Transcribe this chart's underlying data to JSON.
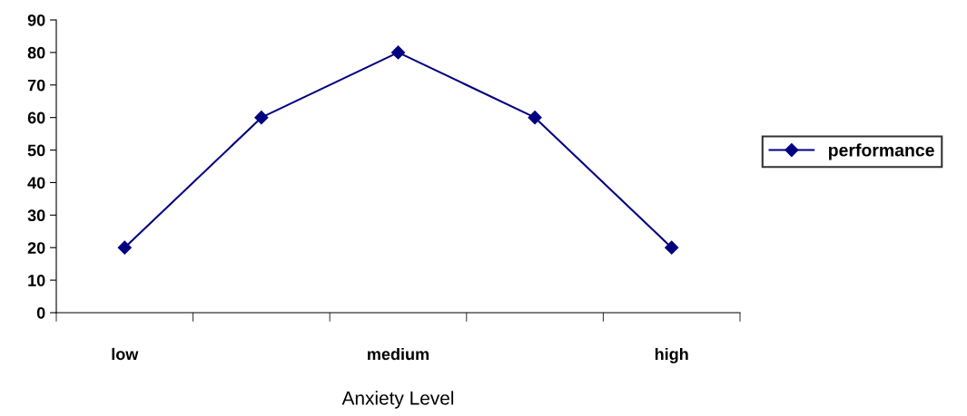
{
  "chart_data": {
    "type": "line",
    "xlabel": "Anxiety Level",
    "categories": [
      "low",
      null,
      "medium",
      null,
      "high"
    ],
    "series": [
      {
        "name": "performance",
        "color": "#000080",
        "values": [
          20,
          60,
          80,
          60,
          20
        ]
      }
    ],
    "ylim": [
      0,
      90
    ],
    "yticks": [
      0,
      10,
      20,
      30,
      40,
      50,
      60,
      70,
      80,
      90
    ],
    "grid": false,
    "legend": "right",
    "marker": "diamond",
    "line_style": "solid"
  }
}
